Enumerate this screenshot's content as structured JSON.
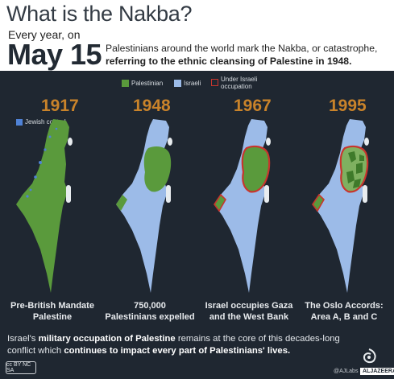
{
  "header": {
    "title": "What is the Nakba?",
    "every_year": "Every year, on",
    "date": "May 15",
    "subtitle_line1": "Palestinians around the world mark the Nakba, or catastrophe,",
    "subtitle_line2": "referring to the ethnic cleansing of Palestine in 1948."
  },
  "legend": {
    "palestinian": "Palestinian",
    "israeli": "Israeli",
    "occupation_line1": "Under Israeli",
    "occupation_line2": "occupation",
    "jewish_control": "Jewish control"
  },
  "colors": {
    "palestinian": "#5a9a3c",
    "israeli": "#9cbbe8",
    "occupation": "#c8352d",
    "year": "#c9832a",
    "background": "#1f2731"
  },
  "panels": [
    {
      "year": "1917",
      "caption_line1": "Pre-British Mandate",
      "caption_line2": "Palestine"
    },
    {
      "year": "1948",
      "caption_line1": "750,000",
      "caption_line2": "Palestinians expelled"
    },
    {
      "year": "1967",
      "caption_line1": "Israel occupies Gaza",
      "caption_line2": "and the West Bank"
    },
    {
      "year": "1995",
      "caption_line1": "The Oslo Accords:",
      "caption_line2": "Area A, B and C"
    }
  ],
  "footer": {
    "line1_a": "Israel's ",
    "line1_b": "military occupation of Palestine",
    "line1_c": " remains at the core of this decades-long",
    "line2_a": "conflict which ",
    "line2_b": "continues to impact every part of Palestinians' lives.",
    "cc_label": "cc BY NC SA",
    "credit": "@AJLabs",
    "brand": "ALJAZEERA"
  }
}
